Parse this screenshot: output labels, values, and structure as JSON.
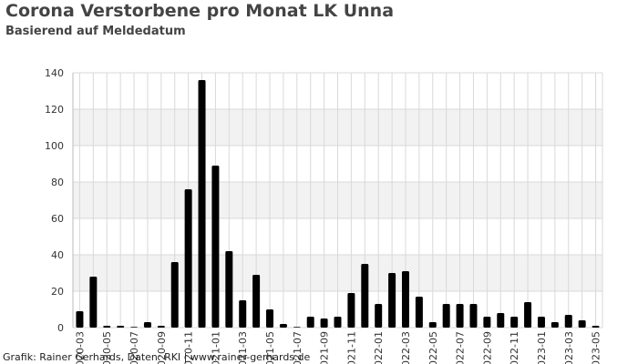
{
  "chart_data": {
    "type": "bar",
    "title": "Corona Verstorbene pro Monat LK Unna",
    "subtitle": "Basierend auf Meldedatum",
    "xlabel": "",
    "ylabel": "",
    "ylim": [
      0,
      140
    ],
    "yticks": [
      0,
      20,
      40,
      60,
      80,
      100,
      120,
      140
    ],
    "grid": true,
    "legend": "none",
    "bar_color": "#000000",
    "band_color": "#f2f2f2",
    "grid_color": "#d9d9d9",
    "categories": [
      "2020-03",
      "2020-04",
      "2020-05",
      "2020-06",
      "2020-07",
      "2020-08",
      "2020-09",
      "2020-10",
      "2020-11",
      "2020-12",
      "2021-01",
      "2021-02",
      "2021-03",
      "2021-04",
      "2021-05",
      "2021-06",
      "2021-07",
      "2021-08",
      "2021-09",
      "2021-10",
      "2021-11",
      "2021-12",
      "2022-01",
      "2022-02",
      "2022-03",
      "2022-04",
      "2022-05",
      "2022-06",
      "2022-07",
      "2022-08",
      "2022-09",
      "2022-10",
      "2022-11",
      "2022-12",
      "2023-01",
      "2023-02",
      "2023-03",
      "2023-04",
      "2023-05"
    ],
    "x_tick_labels": [
      "2020-03",
      "2020-05",
      "2020-07",
      "2020-09",
      "2020-11",
      "2021-01",
      "2021-03",
      "2021-05",
      "2021-07",
      "2021-09",
      "2021-11",
      "2022-01",
      "2022-03",
      "2022-05",
      "2022-07",
      "2022-09",
      "2022-11",
      "2023-01",
      "2023-03",
      "2023-05"
    ],
    "values": [
      9,
      28,
      1,
      1,
      0,
      3,
      1,
      36,
      76,
      136,
      89,
      42,
      15,
      29,
      10,
      2,
      0,
      6,
      5,
      6,
      19,
      35,
      13,
      30,
      31,
      17,
      3,
      13,
      13,
      13,
      6,
      8,
      6,
      14,
      6,
      3,
      7,
      4,
      1
    ]
  },
  "credit": "Grafik: Rainer Gerhards, Daten: RKI | www.rainer-gerhards.de"
}
